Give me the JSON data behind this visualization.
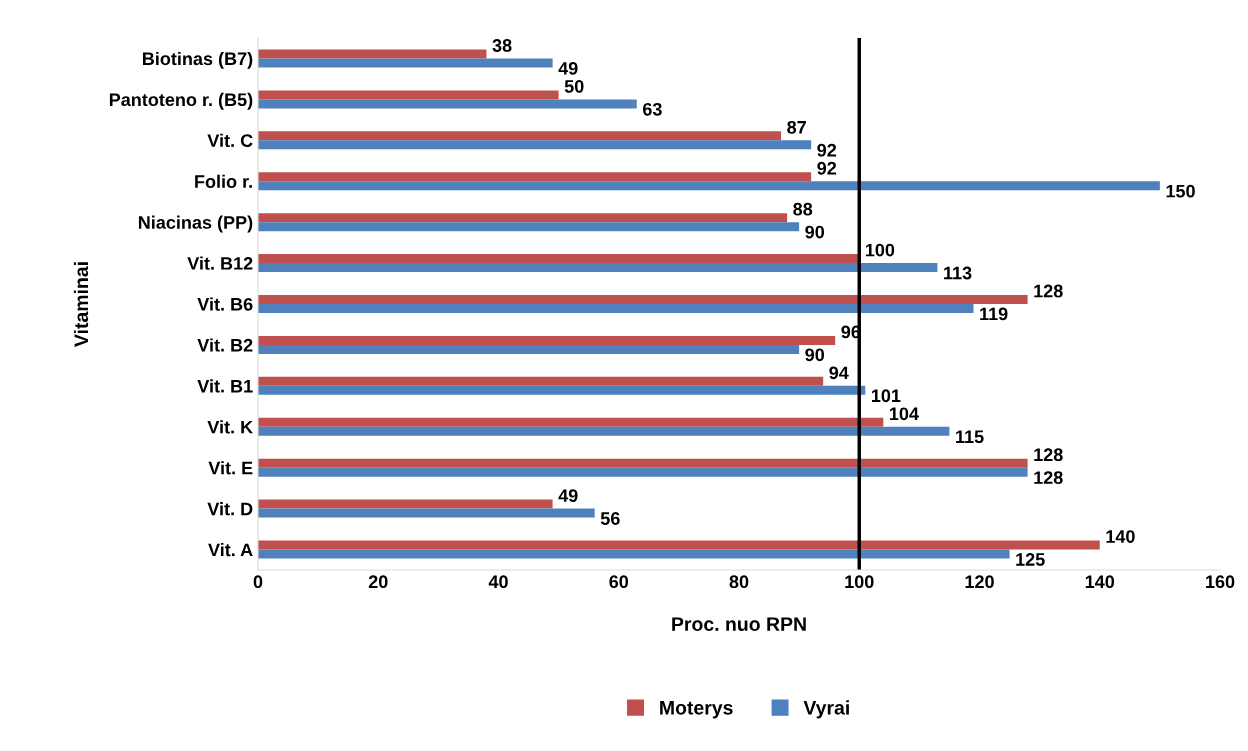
{
  "chart_data": {
    "type": "bar",
    "orientation": "horizontal",
    "xlabel": "Proc. nuo RPN",
    "ylabel": "Vitaminai",
    "categories": [
      "Biotinas (B7)",
      "Pantoteno r. (B5)",
      "Vit. C",
      "Folio r.",
      "Niacinas (PP)",
      "Vit. B12",
      "Vit. B6",
      "Vit. B2",
      "Vit. B1",
      "Vit. K",
      "Vit. E",
      "Vit. D",
      "Vit. A"
    ],
    "series": [
      {
        "name": "Moterys",
        "color": "#c0504d",
        "values": [
          38,
          50,
          87,
          92,
          88,
          100,
          128,
          96,
          94,
          104,
          128,
          49,
          140
        ]
      },
      {
        "name": "Vyrai",
        "color": "#4f81bd",
        "values": [
          49,
          63,
          92,
          150,
          90,
          113,
          119,
          90,
          101,
          115,
          128,
          56,
          125
        ]
      }
    ],
    "xlim": [
      0,
      160
    ],
    "xticks": [
      0,
      20,
      40,
      60,
      80,
      100,
      120,
      140,
      160
    ],
    "ref_lines": [
      {
        "axis": "x",
        "value": 100,
        "color": "#000000"
      }
    ],
    "data_labels": true,
    "grid": false,
    "legend": "bottom"
  }
}
